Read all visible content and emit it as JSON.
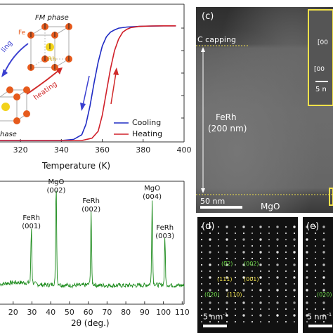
{
  "charts": {
    "ms_curve": {
      "type": "line",
      "xlabel": "Temperature (K)",
      "xticks": [
        "320",
        "340",
        "360",
        "380",
        "400"
      ],
      "xlim": [
        310,
        400
      ],
      "series": [
        {
          "name": "Cooling",
          "color": "#1f2bc4",
          "x": [
            310,
            340,
            346,
            350,
            352,
            354,
            356,
            358,
            360,
            362,
            364,
            366,
            368,
            372,
            380,
            390,
            396
          ],
          "y": [
            0,
            0,
            0.01,
            0.05,
            0.14,
            0.3,
            0.5,
            0.68,
            0.82,
            0.9,
            0.94,
            0.96,
            0.975,
            0.985,
            0.992,
            0.995,
            0.995
          ]
        },
        {
          "name": "Heating",
          "color": "#d0202a",
          "x": [
            310,
            350,
            355,
            358,
            360,
            362,
            364,
            366,
            368,
            370,
            372,
            374,
            378,
            384,
            390,
            396
          ],
          "y": [
            0,
            0,
            0.02,
            0.08,
            0.22,
            0.42,
            0.62,
            0.78,
            0.88,
            0.94,
            0.965,
            0.98,
            0.99,
            0.994,
            0.995,
            0.995
          ]
        }
      ],
      "legend_position": "bottom-right"
    },
    "xrd": {
      "type": "line",
      "xlabel": "2θ (deg.)",
      "xticks": [
        "20",
        "30",
        "40",
        "50",
        "60",
        "70",
        "80",
        "90",
        "100",
        "110"
      ],
      "xlim": [
        13,
        111
      ],
      "series": [
        {
          "name": "",
          "color": "#1a8a1a",
          "peaks": [
            {
              "x": 29.7,
              "height": 0.55,
              "label": "FeRh (001)"
            },
            {
              "x": 42.9,
              "height": 1.0,
              "label": "MgO (002)"
            },
            {
              "x": 61.5,
              "height": 0.72,
              "label": "FeRh (002)"
            },
            {
              "x": 94.0,
              "height": 0.85,
              "label": "MgO (004)"
            },
            {
              "x": 100.8,
              "height": 0.45,
              "label": "FeRh (003)"
            }
          ]
        }
      ]
    }
  },
  "phase_diagram": {
    "fm_phase": "FM phase",
    "afm_phase": "hase",
    "fe": "Fe",
    "rh": "Rh",
    "cooling_arrow_text": "ling",
    "heating_arrow_text": "heating"
  },
  "tem": {
    "panel_label": "(c)",
    "capping": "C capping",
    "film": "FeRh",
    "thickness": "(200 nm)",
    "scale": "50 nm",
    "substrate": "MgO",
    "inset_scale": "5 n",
    "inset_labels": [
      "[00",
      "[00"
    ]
  },
  "saed_d": {
    "panel_label": "(d)",
    "scale": "5 nm",
    "scale_sup": "-1",
    "spots": [
      {
        "label": "(0̅2)",
        "color": "green"
      },
      {
        "label": "(002)",
        "color": "green"
      },
      {
        "label": "(111)",
        "color": "yellow"
      },
      {
        "label": "(001)",
        "color": "yellow"
      },
      {
        "label": "(020)",
        "color": "green"
      },
      {
        "label": "(110)",
        "color": "yellow"
      }
    ]
  },
  "saed_e": {
    "panel_label": "(e)",
    "scale": "5 nm",
    "scale_sup": "-1",
    "spots": [
      {
        "label": "(020)",
        "color": "green"
      }
    ]
  }
}
